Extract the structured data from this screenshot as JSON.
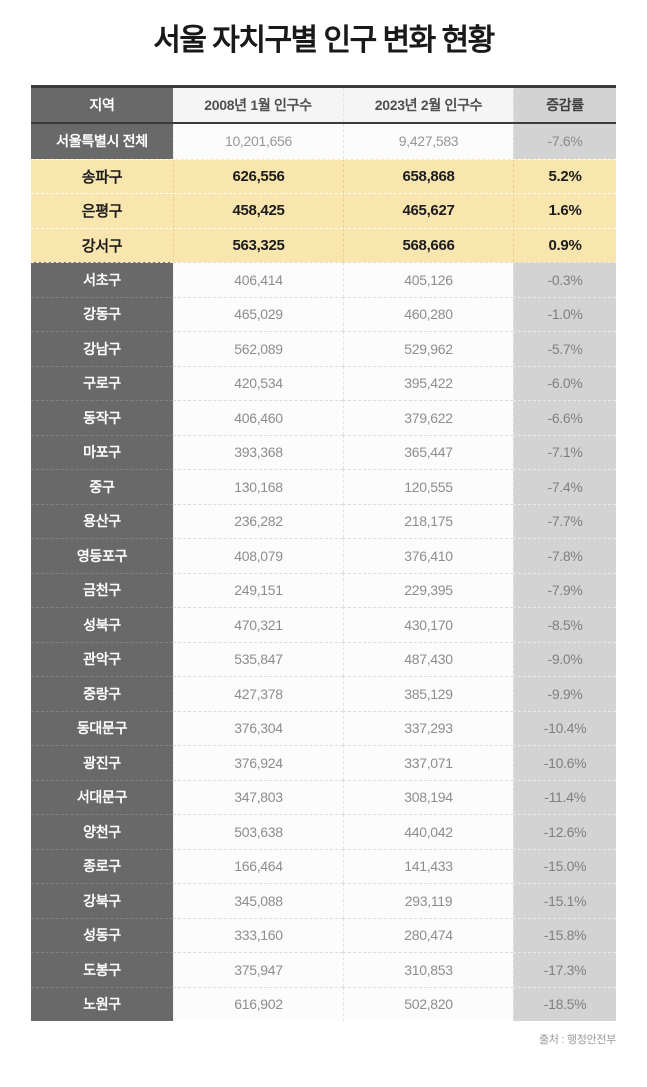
{
  "title": "서울 자치구별 인구 변화 현황",
  "footer": {
    "source": "출처 : 행정안전부"
  },
  "colors": {
    "highlight_yellow": "#f9e6ae",
    "region_column_dark": "#696969",
    "change_column_gray": "#d3d3d3",
    "table_border_dark": "#3b3b3b",
    "body_text_gray": "#8d8d8d"
  },
  "table": {
    "headers": [
      "지역",
      "2008년 1월 인구수",
      "2023년 2월 인구수",
      "증감률"
    ],
    "rows": [
      {
        "region": "서울특별시 전체",
        "pop_2008": "10,201,656",
        "pop_2023": "9,427,583",
        "change": "-7.6%",
        "style": "summary"
      },
      {
        "region": "송파구",
        "pop_2008": "626,556",
        "pop_2023": "658,868",
        "change": "5.2%",
        "style": "highlight"
      },
      {
        "region": "은평구",
        "pop_2008": "458,425",
        "pop_2023": "465,627",
        "change": "1.6%",
        "style": "highlight"
      },
      {
        "region": "강서구",
        "pop_2008": "563,325",
        "pop_2023": "568,666",
        "change": "0.9%",
        "style": "highlight"
      },
      {
        "region": "서초구",
        "pop_2008": "406,414",
        "pop_2023": "405,126",
        "change": "-0.3%",
        "style": "regular"
      },
      {
        "region": "강동구",
        "pop_2008": "465,029",
        "pop_2023": "460,280",
        "change": "-1.0%",
        "style": "regular"
      },
      {
        "region": "강남구",
        "pop_2008": "562,089",
        "pop_2023": "529,962",
        "change": "-5.7%",
        "style": "regular"
      },
      {
        "region": "구로구",
        "pop_2008": "420,534",
        "pop_2023": "395,422",
        "change": "-6.0%",
        "style": "regular"
      },
      {
        "region": "동작구",
        "pop_2008": "406,460",
        "pop_2023": "379,622",
        "change": "-6.6%",
        "style": "regular"
      },
      {
        "region": "마포구",
        "pop_2008": "393,368",
        "pop_2023": "365,447",
        "change": "-7.1%",
        "style": "regular"
      },
      {
        "region": "중구",
        "pop_2008": "130,168",
        "pop_2023": "120,555",
        "change": "-7.4%",
        "style": "regular"
      },
      {
        "region": "용산구",
        "pop_2008": "236,282",
        "pop_2023": "218,175",
        "change": "-7.7%",
        "style": "regular"
      },
      {
        "region": "영등포구",
        "pop_2008": "408,079",
        "pop_2023": "376,410",
        "change": "-7.8%",
        "style": "regular"
      },
      {
        "region": "금천구",
        "pop_2008": "249,151",
        "pop_2023": "229,395",
        "change": "-7.9%",
        "style": "regular"
      },
      {
        "region": "성북구",
        "pop_2008": "470,321",
        "pop_2023": "430,170",
        "change": "-8.5%",
        "style": "regular"
      },
      {
        "region": "관악구",
        "pop_2008": "535,847",
        "pop_2023": "487,430",
        "change": "-9.0%",
        "style": "regular"
      },
      {
        "region": "중랑구",
        "pop_2008": "427,378",
        "pop_2023": "385,129",
        "change": "-9.9%",
        "style": "regular"
      },
      {
        "region": "동대문구",
        "pop_2008": "376,304",
        "pop_2023": "337,293",
        "change": "-10.4%",
        "style": "regular"
      },
      {
        "region": "광진구",
        "pop_2008": "376,924",
        "pop_2023": "337,071",
        "change": "-10.6%",
        "style": "regular"
      },
      {
        "region": "서대문구",
        "pop_2008": "347,803",
        "pop_2023": "308,194",
        "change": "-11.4%",
        "style": "regular"
      },
      {
        "region": "양천구",
        "pop_2008": "503,638",
        "pop_2023": "440,042",
        "change": "-12.6%",
        "style": "regular"
      },
      {
        "region": "종로구",
        "pop_2008": "166,464",
        "pop_2023": "141,433",
        "change": "-15.0%",
        "style": "regular"
      },
      {
        "region": "강북구",
        "pop_2008": "345,088",
        "pop_2023": "293,119",
        "change": "-15.1%",
        "style": "regular"
      },
      {
        "region": "성동구",
        "pop_2008": "333,160",
        "pop_2023": "280,474",
        "change": "-15.8%",
        "style": "regular"
      },
      {
        "region": "도봉구",
        "pop_2008": "375,947",
        "pop_2023": "310,853",
        "change": "-17.3%",
        "style": "regular"
      },
      {
        "region": "노원구",
        "pop_2008": "616,902",
        "pop_2023": "502,820",
        "change": "-18.5%",
        "style": "regular"
      }
    ]
  },
  "chart_data": {
    "type": "table",
    "title": "서울 자치구별 인구 변화 현황",
    "columns": [
      "지역",
      "2008년 1월 인구수",
      "2023년 2월 인구수",
      "증감률"
    ],
    "categories": [
      "서울특별시 전체",
      "송파구",
      "은평구",
      "강서구",
      "서초구",
      "강동구",
      "강남구",
      "구로구",
      "동작구",
      "마포구",
      "중구",
      "용산구",
      "영등포구",
      "금천구",
      "성북구",
      "관악구",
      "중랑구",
      "동대문구",
      "광진구",
      "서대문구",
      "양천구",
      "종로구",
      "강북구",
      "성동구",
      "도봉구",
      "노원구"
    ],
    "series": [
      {
        "name": "2008년 1월 인구수",
        "values": [
          10201656,
          626556,
          458425,
          563325,
          406414,
          465029,
          562089,
          420534,
          406460,
          393368,
          130168,
          236282,
          408079,
          249151,
          470321,
          535847,
          427378,
          376304,
          376924,
          347803,
          503638,
          166464,
          345088,
          333160,
          375947,
          616902
        ]
      },
      {
        "name": "2023년 2월 인구수",
        "values": [
          9427583,
          658868,
          465627,
          568666,
          405126,
          460280,
          529962,
          395422,
          379622,
          365447,
          120555,
          218175,
          376410,
          229395,
          430170,
          487430,
          385129,
          337293,
          337071,
          308194,
          440042,
          141433,
          293119,
          280474,
          310853,
          502820
        ]
      },
      {
        "name": "증감률(%)",
        "values": [
          -7.6,
          5.2,
          1.6,
          0.9,
          -0.3,
          -1.0,
          -5.7,
          -6.0,
          -6.6,
          -7.1,
          -7.4,
          -7.7,
          -7.8,
          -7.9,
          -8.5,
          -9.0,
          -9.9,
          -10.4,
          -10.6,
          -11.4,
          -12.6,
          -15.0,
          -15.1,
          -15.8,
          -17.3,
          -18.5
        ]
      }
    ],
    "annotations": [
      "highlighted rows: 송파구, 은평구, 강서구 (population increased)"
    ],
    "source": "출처 : 행정안전부"
  }
}
